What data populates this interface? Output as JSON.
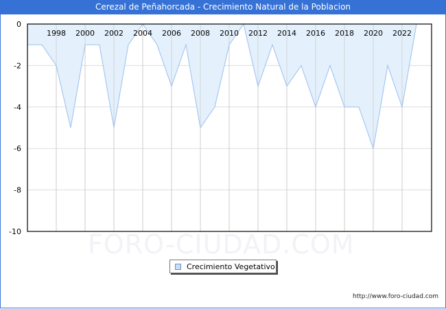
{
  "window": {
    "title": "Cerezal de Peñahorcada - Crecimiento Natural de la Poblacion",
    "footer_url": "http://www.foro-ciudad.com",
    "watermark": "FORO-CIUDAD.COM"
  },
  "legend": {
    "label": "Crecimiento Vegetativo"
  },
  "colors": {
    "title_bar": "#3672d6",
    "area_fill": "#e3f0fd",
    "line": "#a8c6ee",
    "grid": "#dddddd",
    "axis": "#000000"
  },
  "chart_data": {
    "type": "area",
    "title": "Cerezal de Peñahorcada - Crecimiento Natural de la Poblacion",
    "xlabel": "",
    "ylabel": "",
    "x": [
      1996,
      1997,
      1998,
      1999,
      2000,
      2001,
      2002,
      2003,
      2004,
      2005,
      2006,
      2007,
      2008,
      2009,
      2010,
      2011,
      2012,
      2013,
      2014,
      2015,
      2016,
      2017,
      2018,
      2019,
      2020,
      2021,
      2022,
      2023
    ],
    "series": [
      {
        "name": "Crecimiento Vegetativo",
        "values": [
          -1,
          -1,
          -2,
          -5,
          -1,
          -1,
          -5,
          -1,
          0,
          -1,
          -3,
          -1,
          -5,
          -4,
          -1,
          0,
          -3,
          -1,
          -3,
          -2,
          -4,
          -2,
          -4,
          -4,
          -6,
          -2,
          -4,
          0
        ]
      }
    ],
    "xticks": [
      "1998",
      "2000",
      "2002",
      "2004",
      "2006",
      "2008",
      "2010",
      "2012",
      "2014",
      "2016",
      "2018",
      "2020",
      "2022"
    ],
    "yticks": [
      "0",
      "-2",
      "-4",
      "-6",
      "-8",
      "-10"
    ],
    "ylim": [
      -10,
      0
    ],
    "grid": true,
    "legend_position": "bottom"
  }
}
